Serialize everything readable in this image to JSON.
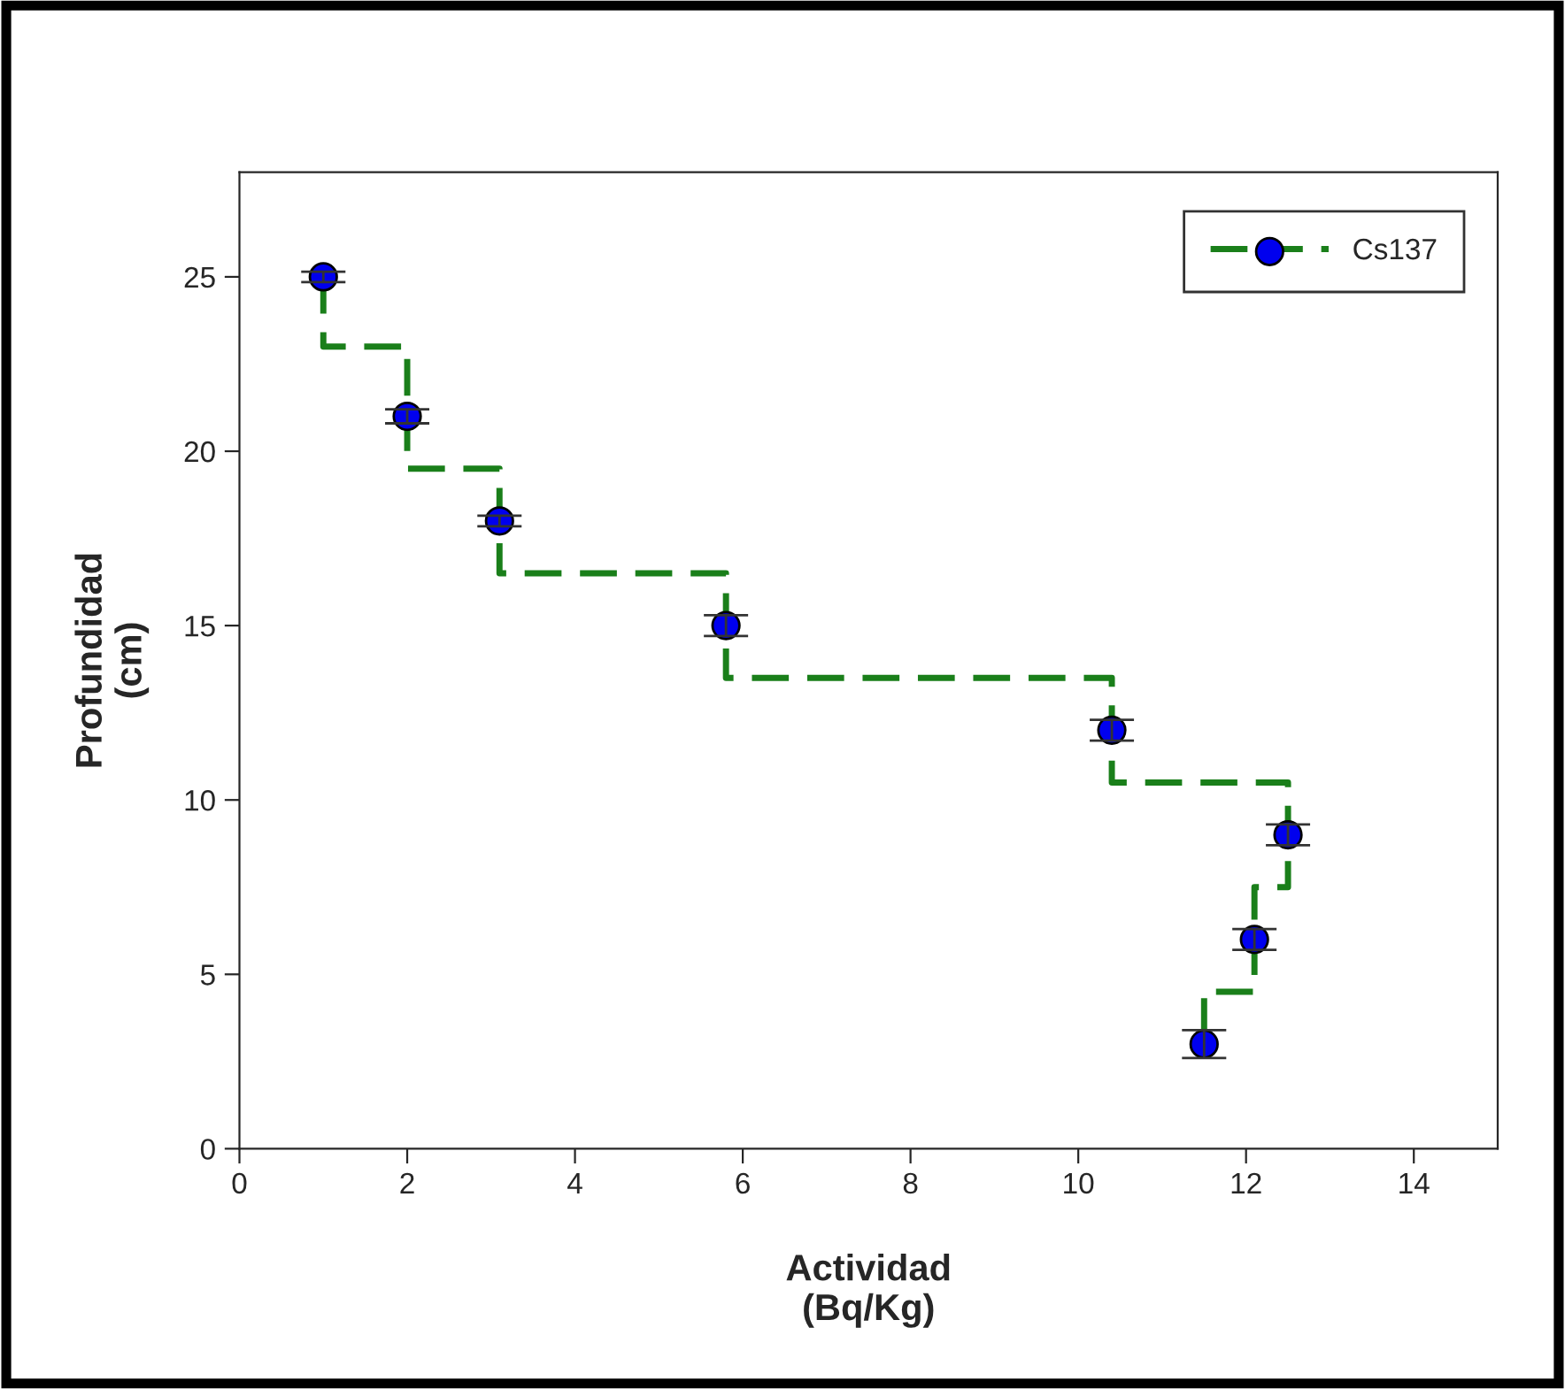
{
  "chart_data": {
    "type": "scatter",
    "xlabel": "Actividad\n(Bq/Kg)",
    "ylabel": "Profundidad\n(cm)",
    "x": [
      1.0,
      2.0,
      3.1,
      5.8,
      10.4,
      12.5,
      12.1,
      11.5
    ],
    "series": [
      {
        "type": "line",
        "marker": "none",
        "color": "#1a7f1a",
        "x": [
          1.0,
          1.0,
          2.0,
          2.0,
          3.1,
          3.1,
          5.8,
          5.8,
          10.4,
          10.4,
          12.5,
          12.5,
          12.1,
          12.1,
          11.5,
          11.5
        ],
        "values": [
          25,
          23,
          23,
          19.5,
          19.5,
          16.5,
          16.5,
          13.5,
          13.5,
          10.5,
          10.5,
          7.5,
          7.5,
          4.5,
          4.5,
          3
        ]
      },
      {
        "name": "Cs137",
        "color": "#0000ee",
        "values": [
          25,
          21,
          18,
          15,
          12,
          9,
          6,
          3
        ],
        "errors": [
          0.15,
          0.2,
          0.15,
          0.3,
          0.3,
          0.3,
          0.3,
          0.4
        ]
      }
    ],
    "xlim": [
      0,
      15
    ],
    "xticks": [
      0,
      2,
      4,
      6,
      8,
      10,
      12,
      14
    ],
    "ylim": [
      0,
      28
    ],
    "yticks": [
      0,
      5,
      10,
      15,
      20,
      25
    ],
    "grid": false,
    "legend": "top right",
    "marker": "circle",
    "line_style": "dashed"
  }
}
